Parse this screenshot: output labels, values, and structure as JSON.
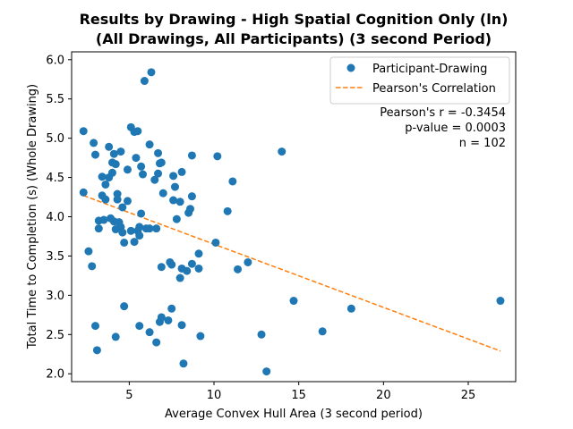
{
  "chart_data": {
    "type": "scatter",
    "title_line1": "Results by Drawing - High Spatial Cognition Only (ln)",
    "title_line2": "(All Drawings, All Participants) (3 second Period)",
    "xlabel": "Average Convex Hull Area (3 second period)",
    "ylabel": "Total Time to Completion (s) (Whole Drawing)",
    "xlim": [
      1.6,
      27.8
    ],
    "ylim": [
      1.9,
      6.1
    ],
    "xticks": [
      5,
      10,
      15,
      20,
      25
    ],
    "yticks": [
      2.0,
      2.5,
      3.0,
      3.5,
      4.0,
      4.5,
      5.0,
      5.5,
      6.0
    ],
    "legend_placement": "top-right",
    "colors": {
      "points": "#1f77b4",
      "fit_line": "#ff7f0e"
    },
    "series": [
      {
        "name": "Participant-Drawing",
        "type": "scatter",
        "points": [
          [
            2.3,
            5.09
          ],
          [
            2.3,
            4.31
          ],
          [
            2.6,
            3.56
          ],
          [
            2.8,
            3.37
          ],
          [
            2.9,
            4.94
          ],
          [
            3.0,
            4.79
          ],
          [
            3.0,
            2.61
          ],
          [
            3.1,
            2.3
          ],
          [
            3.2,
            3.95
          ],
          [
            3.2,
            3.85
          ],
          [
            3.4,
            4.51
          ],
          [
            3.4,
            4.27
          ],
          [
            3.6,
            4.41
          ],
          [
            3.6,
            4.22
          ],
          [
            3.8,
            4.89
          ],
          [
            3.8,
            4.5
          ],
          [
            3.9,
            3.98
          ],
          [
            4.0,
            4.69
          ],
          [
            4.0,
            4.56
          ],
          [
            4.1,
            4.8
          ],
          [
            4.1,
            3.94
          ],
          [
            4.2,
            4.67
          ],
          [
            4.2,
            3.84
          ],
          [
            4.2,
            2.47
          ],
          [
            4.3,
            4.29
          ],
          [
            4.3,
            4.22
          ],
          [
            4.4,
            3.93
          ],
          [
            4.5,
            4.83
          ],
          [
            4.5,
            3.87
          ],
          [
            4.6,
            4.12
          ],
          [
            4.6,
            3.8
          ],
          [
            4.7,
            3.67
          ],
          [
            4.7,
            2.86
          ],
          [
            4.9,
            4.6
          ],
          [
            4.9,
            4.2
          ],
          [
            5.1,
            5.14
          ],
          [
            5.1,
            3.82
          ],
          [
            5.3,
            5.08
          ],
          [
            5.3,
            3.68
          ],
          [
            5.4,
            4.75
          ],
          [
            5.5,
            5.09
          ],
          [
            5.5,
            3.82
          ],
          [
            5.6,
            3.87
          ],
          [
            5.6,
            3.76
          ],
          [
            5.6,
            2.61
          ],
          [
            5.7,
            4.64
          ],
          [
            5.7,
            4.04
          ],
          [
            5.8,
            4.54
          ],
          [
            5.9,
            5.73
          ],
          [
            6.0,
            3.85
          ],
          [
            6.2,
            4.92
          ],
          [
            6.2,
            2.53
          ],
          [
            6.3,
            5.84
          ],
          [
            6.5,
            4.47
          ],
          [
            6.6,
            3.85
          ],
          [
            6.6,
            2.4
          ],
          [
            6.7,
            4.81
          ],
          [
            6.7,
            4.55
          ],
          [
            6.8,
            2.66
          ],
          [
            6.9,
            4.69
          ],
          [
            6.9,
            3.36
          ],
          [
            6.9,
            2.72
          ],
          [
            7.0,
            4.3
          ],
          [
            7.3,
            2.68
          ],
          [
            7.4,
            3.42
          ],
          [
            7.5,
            3.39
          ],
          [
            7.5,
            2.83
          ],
          [
            7.6,
            4.52
          ],
          [
            7.6,
            4.21
          ],
          [
            7.7,
            4.38
          ],
          [
            7.8,
            3.97
          ],
          [
            8.0,
            4.19
          ],
          [
            8.0,
            3.22
          ],
          [
            8.1,
            4.57
          ],
          [
            8.1,
            3.34
          ],
          [
            8.1,
            2.62
          ],
          [
            8.2,
            2.13
          ],
          [
            8.4,
            3.31
          ],
          [
            8.5,
            4.05
          ],
          [
            8.6,
            4.1
          ],
          [
            8.7,
            4.78
          ],
          [
            8.7,
            4.26
          ],
          [
            8.7,
            3.4
          ],
          [
            9.1,
            3.53
          ],
          [
            9.1,
            3.34
          ],
          [
            9.2,
            2.48
          ],
          [
            10.1,
            3.67
          ],
          [
            10.2,
            4.77
          ],
          [
            10.8,
            4.07
          ],
          [
            11.1,
            4.45
          ],
          [
            11.4,
            3.33
          ],
          [
            12.0,
            3.42
          ],
          [
            12.8,
            2.5
          ],
          [
            13.1,
            2.03
          ],
          [
            14.0,
            4.83
          ],
          [
            14.7,
            2.93
          ],
          [
            16.4,
            2.54
          ],
          [
            18.1,
            2.83
          ],
          [
            26.9,
            2.93
          ],
          [
            6.8,
            4.68
          ],
          [
            3.5,
            3.96
          ],
          [
            6.2,
            3.85
          ]
        ]
      },
      {
        "name": "Pearson's Correlation",
        "type": "line",
        "points": [
          [
            2.3,
            4.27
          ],
          [
            26.9,
            2.29
          ]
        ]
      }
    ],
    "stats": {
      "r": "Pearson's r = -0.3454",
      "p": "p-value = 0.0003",
      "n": "n = 102"
    }
  }
}
